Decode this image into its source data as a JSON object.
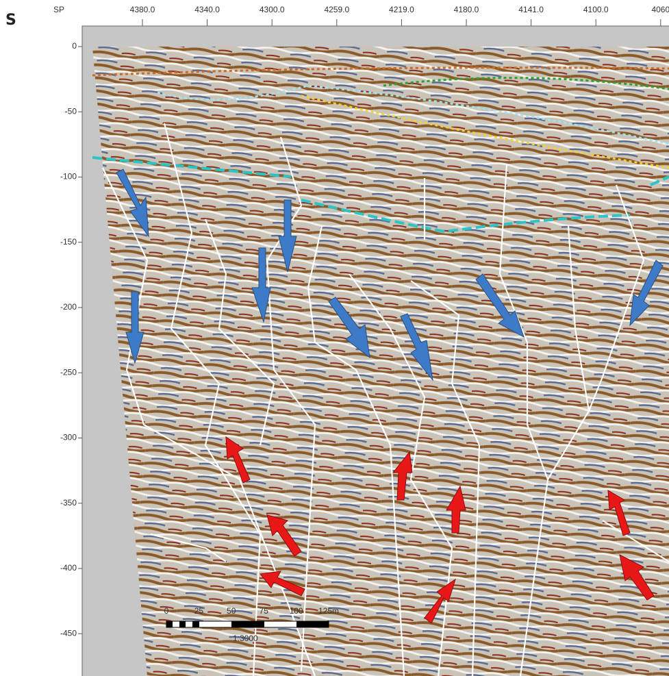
{
  "panel_label": "S",
  "top_axis": {
    "label": "SP",
    "ticks": [
      "4380.0",
      "4340.0",
      "4300.0",
      "4259.0",
      "4219.0",
      "4180.0",
      "4141.0",
      "4100.0",
      "4060"
    ]
  },
  "left_axis": {
    "ticks": [
      0,
      -50,
      -100,
      -150,
      -200,
      -250,
      -300,
      -350,
      -400,
      -450
    ]
  },
  "scale_bar": {
    "ticks": [
      "0",
      "25",
      "50",
      "75",
      "100",
      "125m"
    ],
    "ratio": "1:3000"
  }
}
